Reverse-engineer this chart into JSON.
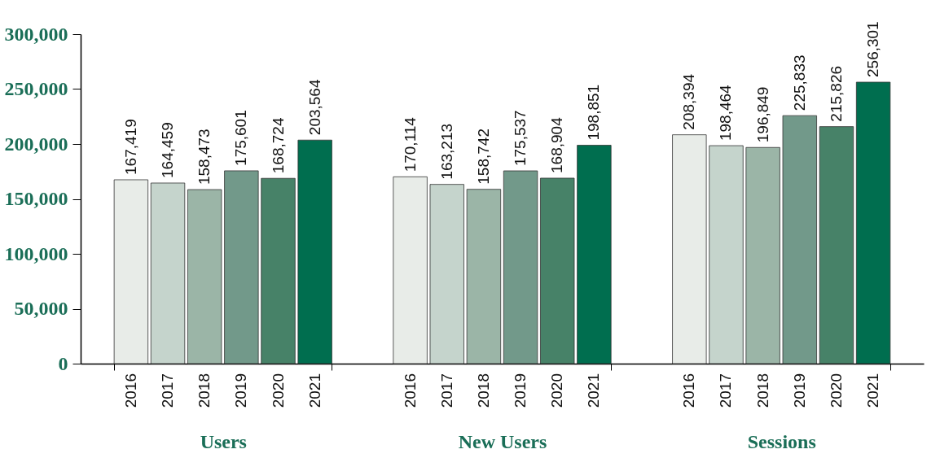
{
  "chart_data": {
    "type": "bar",
    "categories": [
      "Users",
      "New Users",
      "Sessions"
    ],
    "series": [
      {
        "name": "2016",
        "color": "#e8ece8",
        "values": [
          167419,
          170114,
          208394
        ],
        "value_labels": [
          "167,419",
          "170,114",
          "208,394"
        ]
      },
      {
        "name": "2017",
        "color": "#c5d4cc",
        "values": [
          164459,
          163213,
          198464
        ],
        "value_labels": [
          "164,459",
          "163,213",
          "198,464"
        ]
      },
      {
        "name": "2018",
        "color": "#9bb5a7",
        "values": [
          158473,
          158742,
          196849
        ],
        "value_labels": [
          "158,473",
          "158,742",
          "196,849"
        ]
      },
      {
        "name": "2019",
        "color": "#72998a",
        "values": [
          175601,
          175537,
          225833
        ],
        "value_labels": [
          "175,601",
          "175,537",
          "225,833"
        ]
      },
      {
        "name": "2020",
        "color": "#478268",
        "values": [
          168724,
          168904,
          215826
        ],
        "value_labels": [
          "168,724",
          "168,904",
          "215,826"
        ]
      },
      {
        "name": "2021",
        "color": "#006e4f",
        "values": [
          203564,
          198851,
          256301
        ],
        "value_labels": [
          "203,564",
          "198,851",
          "256,301"
        ]
      }
    ],
    "ylim": [
      0,
      300000
    ],
    "yticks": [
      {
        "value": 0,
        "label": "0"
      },
      {
        "value": 50000,
        "label": "50,000"
      },
      {
        "value": 100000,
        "label": "100,000"
      },
      {
        "value": 150000,
        "label": "150,000"
      },
      {
        "value": 200000,
        "label": "200,000"
      },
      {
        "value": 250000,
        "label": "250,000"
      },
      {
        "value": 300000,
        "label": "300,000"
      }
    ],
    "grid": false,
    "legend": false
  }
}
